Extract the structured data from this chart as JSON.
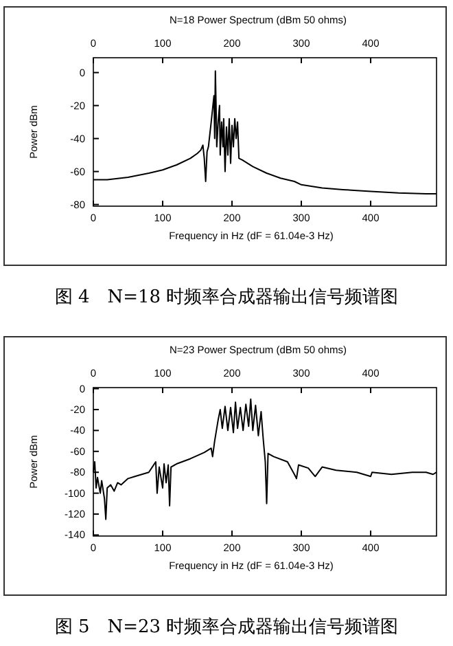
{
  "chart_data": [
    {
      "type": "line",
      "title": "N=18 Power Spectrum (dBm 50 ohms)",
      "xlabel": "Frequency in Hz (dF = 61.04e-3 Hz)",
      "ylabel": "Power dBm",
      "annotations": [
        "图 4　N=18 时频率合成器输出信号频谱图"
      ],
      "xlim": [
        0,
        495
      ],
      "xticks": [
        0,
        100,
        200,
        300,
        400
      ],
      "x2lim": [
        0,
        495
      ],
      "x2ticks": [
        0,
        100,
        200,
        300,
        400
      ],
      "ylim": [
        -81,
        9
      ],
      "yticks": [
        0,
        -20,
        -40,
        -60,
        -80
      ],
      "series": [
        {
          "color": "#000000",
          "x": [
            0,
            20,
            50,
            80,
            100,
            120,
            140,
            150,
            155,
            158,
            160,
            162,
            164,
            166,
            170,
            172,
            174,
            175,
            176,
            177,
            178,
            180,
            182,
            183,
            185,
            187,
            188,
            190,
            192,
            194,
            196,
            198,
            200,
            202,
            204,
            206,
            208,
            210,
            215,
            230,
            250,
            270,
            290,
            300,
            330,
            360,
            400,
            440,
            480,
            495
          ],
          "values": [
            -65,
            -65,
            -63.5,
            -61,
            -59,
            -56,
            -52,
            -49,
            -47,
            -44,
            -52,
            -66,
            -48,
            -45,
            -30,
            -22,
            -14,
            -40,
            1,
            -20,
            -45,
            -30,
            -20,
            -50,
            -30,
            -45,
            -28,
            -60,
            -33,
            -50,
            -28,
            -55,
            -32,
            -45,
            -28,
            -40,
            -30,
            -52,
            -53,
            -57,
            -61,
            -64,
            -66,
            -68,
            -70,
            -71,
            -72,
            -73,
            -73.5,
            -73.5
          ]
        }
      ]
    },
    {
      "type": "line",
      "title": "N=23 Power Spectrum (dBm 50 ohms)",
      "xlabel": "Frequency in Hz (dF = 61.04e-3 Hz)",
      "ylabel": "Power dBm",
      "annotations": [
        "图 5　N=23 时频率合成器输出信号频谱图"
      ],
      "xlim": [
        0,
        495
      ],
      "xticks": [
        0,
        100,
        200,
        300,
        400
      ],
      "x2lim": [
        0,
        495
      ],
      "x2ticks": [
        0,
        100,
        200,
        300,
        400
      ],
      "ylim": [
        -141,
        1
      ],
      "yticks": [
        0,
        -20,
        -40,
        -60,
        -80,
        -100,
        -120,
        -140
      ],
      "series": [
        {
          "color": "#000000",
          "x": [
            0,
            2,
            4,
            6,
            10,
            12,
            16,
            18,
            20,
            25,
            30,
            35,
            40,
            50,
            60,
            70,
            80,
            85,
            90,
            92,
            95,
            100,
            102,
            105,
            108,
            110,
            112,
            120,
            140,
            160,
            170,
            172,
            175,
            180,
            183,
            186,
            190,
            194,
            198,
            202,
            205,
            208,
            212,
            216,
            220,
            224,
            227,
            230,
            234,
            238,
            242,
            245,
            248,
            250,
            252,
            260,
            280,
            290,
            293,
            296,
            310,
            320,
            330,
            350,
            380,
            400,
            402,
            430,
            460,
            480,
            490,
            495
          ],
          "values": [
            -80,
            -70,
            -95,
            -85,
            -100,
            -88,
            -105,
            -125,
            -95,
            -92,
            -98,
            -90,
            -92,
            -86,
            -84,
            -82,
            -80,
            -75,
            -70,
            -100,
            -75,
            -95,
            -72,
            -90,
            -73,
            -112,
            -75,
            -72,
            -67,
            -61,
            -57,
            -65,
            -50,
            -30,
            -20,
            -38,
            -17,
            -40,
            -18,
            -42,
            -13,
            -38,
            -18,
            -40,
            -15,
            -36,
            -10,
            -40,
            -16,
            -45,
            -22,
            -48,
            -70,
            -110,
            -62,
            -65,
            -70,
            -82,
            -86,
            -73,
            -76,
            -84,
            -75,
            -78,
            -80,
            -84,
            -80,
            -82,
            -80,
            -80,
            -82,
            -80
          ]
        }
      ]
    }
  ]
}
